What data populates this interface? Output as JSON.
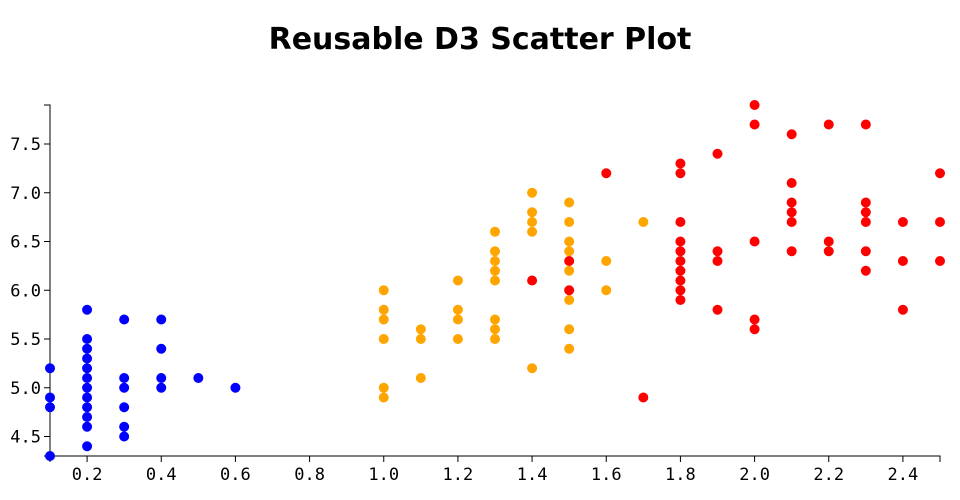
{
  "chart_data": {
    "type": "scatter",
    "title": "Reusable D3 Scatter Plot",
    "xlabel": "",
    "ylabel": "",
    "xlim": [
      0.1,
      2.5
    ],
    "ylim": [
      4.3,
      7.9
    ],
    "x_ticks": [
      0.2,
      0.4,
      0.6,
      0.8,
      1.0,
      1.2,
      1.4,
      1.6,
      1.8,
      2.0,
      2.2,
      2.4
    ],
    "y_ticks": [
      4.5,
      5.0,
      5.5,
      6.0,
      6.5,
      7.0,
      7.5
    ],
    "grid": false,
    "series": [
      {
        "color": "#0000ff",
        "points": [
          [
            0.1,
            5.2
          ],
          [
            0.1,
            4.9
          ],
          [
            0.1,
            4.8
          ],
          [
            0.1,
            4.3
          ],
          [
            0.2,
            5.8
          ],
          [
            0.2,
            5.5
          ],
          [
            0.2,
            5.4
          ],
          [
            0.2,
            5.3
          ],
          [
            0.2,
            5.2
          ],
          [
            0.2,
            5.1
          ],
          [
            0.2,
            5.0
          ],
          [
            0.2,
            4.9
          ],
          [
            0.2,
            4.8
          ],
          [
            0.2,
            4.7
          ],
          [
            0.2,
            4.6
          ],
          [
            0.2,
            4.4
          ],
          [
            0.3,
            5.7
          ],
          [
            0.3,
            5.1
          ],
          [
            0.3,
            5.0
          ],
          [
            0.3,
            4.8
          ],
          [
            0.3,
            4.6
          ],
          [
            0.3,
            4.5
          ],
          [
            0.4,
            5.7
          ],
          [
            0.4,
            5.4
          ],
          [
            0.4,
            5.1
          ],
          [
            0.4,
            5.0
          ],
          [
            0.5,
            5.1
          ],
          [
            0.6,
            5.0
          ]
        ]
      },
      {
        "color": "#ffa500",
        "points": [
          [
            1.0,
            6.0
          ],
          [
            1.0,
            5.8
          ],
          [
            1.0,
            5.7
          ],
          [
            1.0,
            5.5
          ],
          [
            1.0,
            5.0
          ],
          [
            1.0,
            4.9
          ],
          [
            1.1,
            5.6
          ],
          [
            1.1,
            5.5
          ],
          [
            1.1,
            5.1
          ],
          [
            1.2,
            6.1
          ],
          [
            1.2,
            5.8
          ],
          [
            1.2,
            5.7
          ],
          [
            1.2,
            5.5
          ],
          [
            1.3,
            6.6
          ],
          [
            1.3,
            6.4
          ],
          [
            1.3,
            6.3
          ],
          [
            1.3,
            6.2
          ],
          [
            1.3,
            6.1
          ],
          [
            1.3,
            5.7
          ],
          [
            1.3,
            5.6
          ],
          [
            1.3,
            5.5
          ],
          [
            1.4,
            7.0
          ],
          [
            1.4,
            6.8
          ],
          [
            1.4,
            6.7
          ],
          [
            1.4,
            6.6
          ],
          [
            1.4,
            5.2
          ],
          [
            1.5,
            6.9
          ],
          [
            1.5,
            6.7
          ],
          [
            1.5,
            6.5
          ],
          [
            1.5,
            6.4
          ],
          [
            1.5,
            6.2
          ],
          [
            1.5,
            5.9
          ],
          [
            1.5,
            5.6
          ],
          [
            1.5,
            5.4
          ],
          [
            1.6,
            6.3
          ],
          [
            1.6,
            6.0
          ],
          [
            1.7,
            6.7
          ]
        ]
      },
      {
        "color": "#ff0000",
        "points": [
          [
            1.4,
            6.1
          ],
          [
            1.5,
            6.3
          ],
          [
            1.5,
            6.0
          ],
          [
            1.6,
            7.2
          ],
          [
            1.7,
            4.9
          ],
          [
            1.8,
            7.3
          ],
          [
            1.8,
            7.2
          ],
          [
            1.8,
            6.7
          ],
          [
            1.8,
            6.5
          ],
          [
            1.8,
            6.4
          ],
          [
            1.8,
            6.3
          ],
          [
            1.8,
            6.2
          ],
          [
            1.8,
            6.1
          ],
          [
            1.8,
            6.0
          ],
          [
            1.8,
            5.9
          ],
          [
            1.9,
            7.4
          ],
          [
            1.9,
            6.4
          ],
          [
            1.9,
            6.3
          ],
          [
            1.9,
            5.8
          ],
          [
            2.0,
            7.9
          ],
          [
            2.0,
            7.7
          ],
          [
            2.0,
            6.5
          ],
          [
            2.0,
            5.7
          ],
          [
            2.0,
            5.6
          ],
          [
            2.1,
            7.6
          ],
          [
            2.1,
            7.1
          ],
          [
            2.1,
            6.9
          ],
          [
            2.1,
            6.8
          ],
          [
            2.1,
            6.7
          ],
          [
            2.1,
            6.4
          ],
          [
            2.2,
            7.7
          ],
          [
            2.2,
            6.5
          ],
          [
            2.2,
            6.4
          ],
          [
            2.3,
            7.7
          ],
          [
            2.3,
            6.9
          ],
          [
            2.3,
            6.8
          ],
          [
            2.3,
            6.7
          ],
          [
            2.3,
            6.4
          ],
          [
            2.3,
            6.2
          ],
          [
            2.4,
            6.7
          ],
          [
            2.4,
            6.3
          ],
          [
            2.4,
            5.8
          ],
          [
            2.5,
            7.2
          ],
          [
            2.5,
            6.7
          ],
          [
            2.5,
            6.3
          ]
        ]
      }
    ]
  }
}
